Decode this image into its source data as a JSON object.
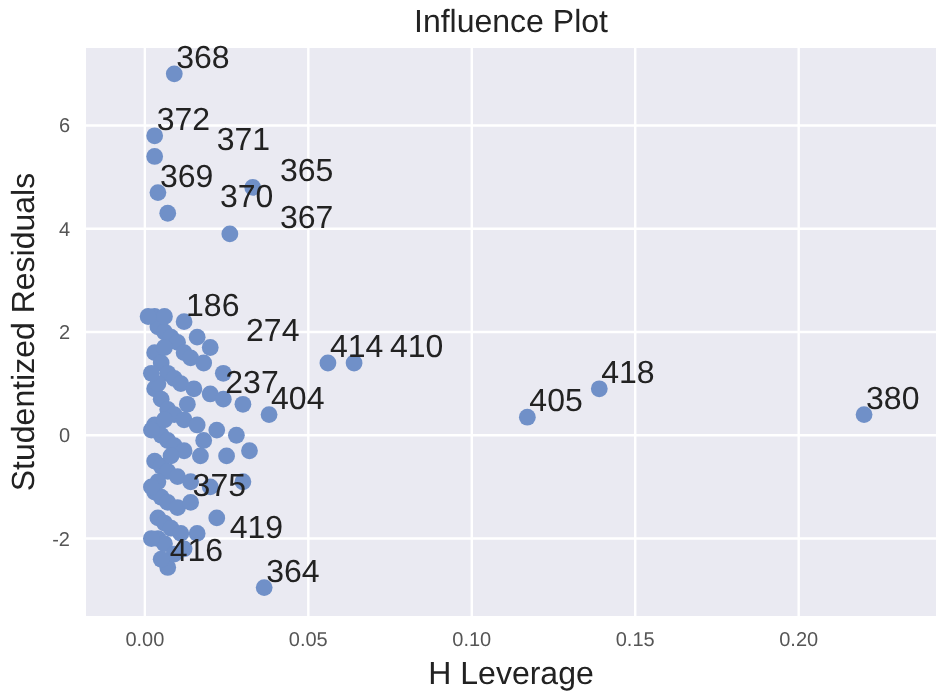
{
  "chart_data": {
    "type": "scatter",
    "title": "Influence Plot",
    "xlabel": "H Leverage",
    "ylabel": "Studentized Residuals",
    "xlim": [
      -0.018,
      0.242
    ],
    "ylim": [
      -3.5,
      7.5
    ],
    "xticks": [
      {
        "value": 0,
        "label": "0.00"
      },
      {
        "value": 0.05,
        "label": "0.05"
      },
      {
        "value": 0.1,
        "label": "0.10"
      },
      {
        "value": 0.15,
        "label": "0.15"
      },
      {
        "value": 0.2,
        "label": "0.20"
      }
    ],
    "yticks": [
      -2,
      0,
      2,
      4,
      6
    ],
    "grid": true,
    "marker": "circle",
    "series": [
      {
        "color": "#7090c8",
        "x": [
          0.009,
          0.003,
          0.003,
          0.004,
          0.007,
          0.033,
          0.026,
          0.056,
          0.064,
          0.117,
          0.139,
          0.22,
          0.0365,
          0.007,
          0.003,
          0.004,
          0.006,
          0.008,
          0.01,
          0.012,
          0.014,
          0.018,
          0.003,
          0.005,
          0.007,
          0.009,
          0.011,
          0.015,
          0.02,
          0.024,
          0.003,
          0.005,
          0.007,
          0.009,
          0.012,
          0.016,
          0.022,
          0.028,
          0.003,
          0.005,
          0.007,
          0.009,
          0.012,
          0.017,
          0.025,
          0.003,
          0.005,
          0.007,
          0.01,
          0.014,
          0.02,
          0.003,
          0.005,
          0.007,
          0.01,
          0.014,
          0.004,
          0.006,
          0.008,
          0.011,
          0.004,
          0.006,
          0.012,
          0.009,
          0.005,
          0.006,
          0.004,
          0.006,
          0.008,
          0.004,
          0.006,
          0.012,
          0.016,
          0.02,
          0.024,
          0.03,
          0.038,
          0.032,
          0.03,
          0.022,
          0.018,
          0.013,
          0.016,
          0.001,
          0.002,
          0.002,
          0.002,
          0.002
        ],
        "values": [
          7.0,
          5.8,
          5.4,
          4.7,
          4.3,
          4.8,
          3.9,
          1.4,
          1.4,
          0.35,
          0.9,
          0.4,
          -2.95,
          -2.56,
          2.3,
          2.1,
          2.0,
          1.9,
          1.8,
          1.6,
          1.5,
          1.4,
          1.6,
          1.4,
          1.2,
          1.1,
          1.0,
          0.9,
          0.8,
          0.7,
          0.9,
          0.7,
          0.5,
          0.4,
          0.3,
          0.2,
          0.1,
          0.0,
          0.2,
          0.0,
          -0.1,
          -0.2,
          -0.3,
          -0.4,
          -0.4,
          -0.5,
          -0.6,
          -0.7,
          -0.8,
          -0.9,
          -1.0,
          -1.1,
          -1.2,
          -1.3,
          -1.4,
          -1.3,
          -1.6,
          -1.7,
          -1.8,
          -1.9,
          -2.0,
          -2.1,
          -2.2,
          -2.3,
          -2.4,
          1.7,
          1.0,
          0.3,
          -0.4,
          -0.9,
          2.3,
          2.2,
          1.9,
          1.7,
          1.2,
          0.6,
          0.4,
          -0.3,
          -0.9,
          -1.6,
          -0.1,
          0.6,
          -1.9,
          2.3,
          1.2,
          0.1,
          -1.0,
          -2.0
        ]
      }
    ],
    "annotations": [
      {
        "text": "368",
        "x": 0.009,
        "y": 7.0
      },
      {
        "text": "372",
        "x": 0.003,
        "y": 5.8
      },
      {
        "text": "371",
        "x": 0.003,
        "y": 5.4
      },
      {
        "text": "369",
        "x": 0.004,
        "y": 4.7
      },
      {
        "text": "370",
        "x": 0.007,
        "y": 4.3
      },
      {
        "text": "365",
        "x": 0.033,
        "y": 4.8
      },
      {
        "text": "367",
        "x": 0.026,
        "y": 3.9
      },
      {
        "text": "414",
        "x": 0.056,
        "y": 1.4
      },
      {
        "text": "410",
        "x": 0.064,
        "y": 1.4
      },
      {
        "text": "405",
        "x": 0.117,
        "y": 0.35
      },
      {
        "text": "418",
        "x": 0.139,
        "y": 0.9
      },
      {
        "text": "380",
        "x": 0.22,
        "y": 0.4
      },
      {
        "text": "364",
        "x": 0.0365,
        "y": -2.95
      },
      {
        "text": "416",
        "x": 0.007,
        "y": -2.56
      },
      {
        "text": "186",
        "x": 0.012,
        "y": 2.2
      },
      {
        "text": "274",
        "x": 0.02,
        "y": 1.7
      },
      {
        "text": "237",
        "x": 0.024,
        "y": 0.7
      },
      {
        "text": "404",
        "x": 0.038,
        "y": 0.4
      },
      {
        "text": "375",
        "x": 0.014,
        "y": -1.3
      },
      {
        "text": "419",
        "x": 0.006,
        "y": -2.1
      }
    ]
  }
}
